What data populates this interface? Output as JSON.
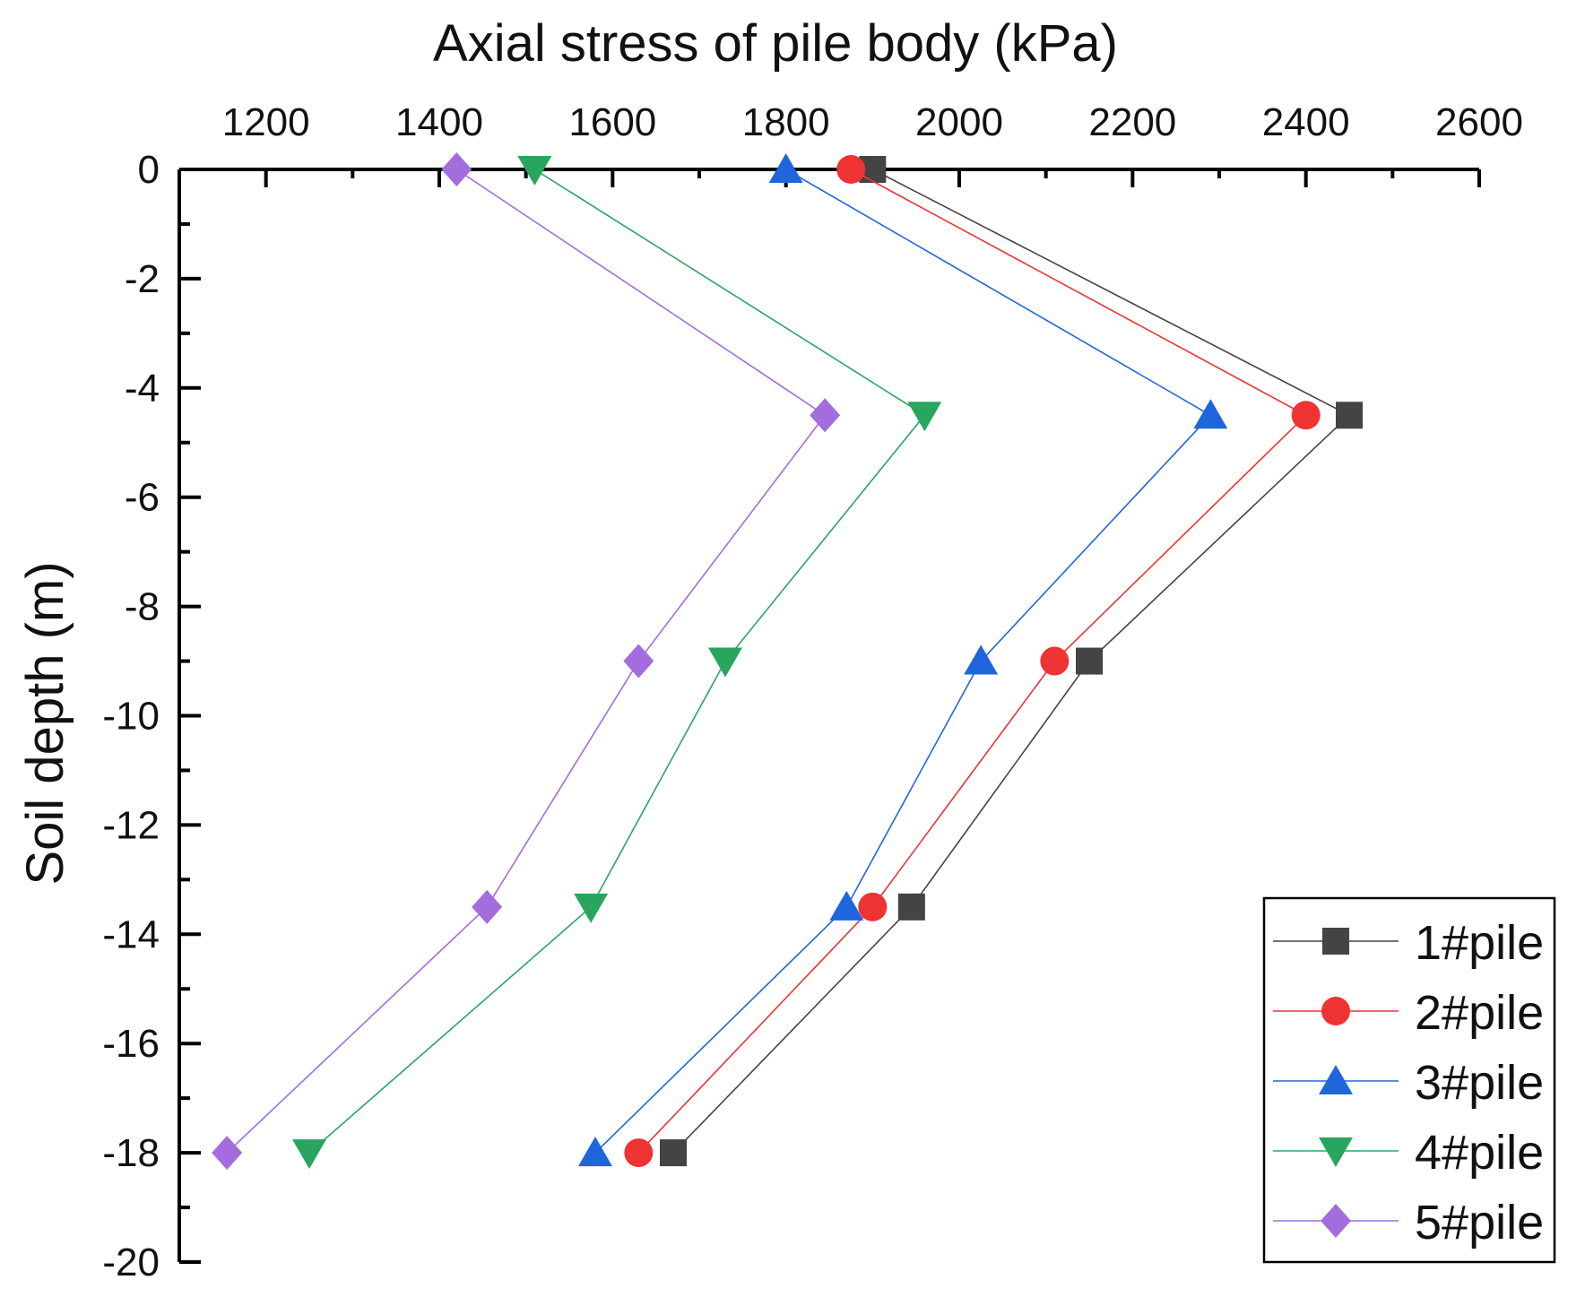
{
  "chart_data": {
    "type": "line",
    "title": "Axial stress of pile body (kPa)",
    "xlabel": "Axial stress of pile body (kPa)",
    "ylabel": "Soil depth (m)",
    "xlim": [
      1100,
      2600
    ],
    "ylim": [
      -20,
      0
    ],
    "x_ticks": [
      1200,
      1400,
      1600,
      1800,
      2000,
      2200,
      2400,
      2600
    ],
    "y_ticks": [
      0,
      -2,
      -4,
      -6,
      -8,
      -10,
      -12,
      -14,
      -16,
      -18,
      -20
    ],
    "x_axis_position": "top",
    "grid": false,
    "legend_position": "bottom-right",
    "series": [
      {
        "name": "1#pile",
        "color": "#444444",
        "marker": "square",
        "x": [
          1900,
          2450,
          2150,
          1945,
          1670
        ],
        "y": [
          0,
          -4.5,
          -9,
          -13.5,
          -18
        ]
      },
      {
        "name": "2#pile",
        "color": "#ee3333",
        "marker": "circle",
        "x": [
          1875,
          2400,
          2110,
          1900,
          1630
        ],
        "y": [
          0,
          -4.5,
          -9,
          -13.5,
          -18
        ]
      },
      {
        "name": "3#pile",
        "color": "#1f66dd",
        "marker": "triangle-up",
        "x": [
          1800,
          2290,
          2025,
          1870,
          1580
        ],
        "y": [
          0,
          -4.5,
          -9,
          -13.5,
          -18
        ]
      },
      {
        "name": "4#pile",
        "color": "#2aa560",
        "marker": "triangle-down",
        "x": [
          1510,
          1960,
          1730,
          1575,
          1250
        ],
        "y": [
          0,
          -4.5,
          -9,
          -13.5,
          -18
        ]
      },
      {
        "name": "5#pile",
        "color": "#a46ddd",
        "marker": "diamond",
        "x": [
          1420,
          1845,
          1630,
          1455,
          1155
        ],
        "y": [
          0,
          -4.5,
          -9,
          -13.5,
          -18
        ]
      }
    ]
  }
}
